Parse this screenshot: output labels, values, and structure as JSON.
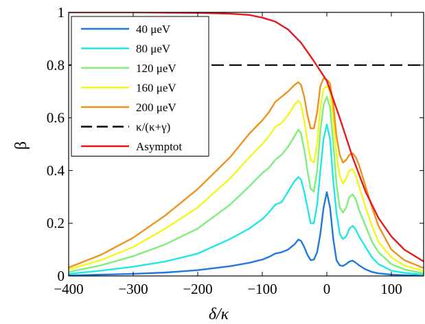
{
  "chart_data": {
    "type": "line",
    "title": "",
    "xlabel": "δ/κ",
    "ylabel": "β",
    "xlim": [
      -400,
      150
    ],
    "ylim": [
      0,
      1
    ],
    "xticks": [
      -400,
      -300,
      -200,
      -100,
      0,
      100
    ],
    "xtick_labels": [
      "−400",
      "−300",
      "−200",
      "−100",
      "0",
      "100"
    ],
    "yticks": [
      0,
      0.2,
      0.4,
      0.6,
      0.8,
      1
    ],
    "ytick_labels": [
      "0",
      "0.2",
      "0.4",
      "0.6",
      "0.8",
      "1"
    ],
    "grid": false,
    "legend_position": "top-left",
    "series": [
      {
        "name": "40 μeV",
        "color": "#1f78e0",
        "style": "solid",
        "x": [
          -400,
          -350,
          -300,
          -250,
          -200,
          -150,
          -120,
          -100,
          -90,
          -80,
          -70,
          -60,
          -50,
          -44,
          -40,
          -35,
          -30,
          -25,
          -20,
          -15,
          -10,
          -5,
          0,
          5,
          10,
          15,
          20,
          25,
          30,
          35,
          40,
          45,
          50,
          60,
          70,
          80,
          100,
          120,
          150
        ],
        "y": [
          0.002,
          0.005,
          0.008,
          0.013,
          0.022,
          0.037,
          0.05,
          0.062,
          0.072,
          0.085,
          0.09,
          0.1,
          0.12,
          0.138,
          0.133,
          0.11,
          0.08,
          0.06,
          0.062,
          0.09,
          0.16,
          0.26,
          0.318,
          0.26,
          0.14,
          0.06,
          0.04,
          0.038,
          0.045,
          0.055,
          0.058,
          0.05,
          0.04,
          0.025,
          0.015,
          0.01,
          0.005,
          0.003,
          0.001
        ]
      },
      {
        "name": "80 μeV",
        "color": "#22e6e6",
        "style": "solid",
        "x": [
          -400,
          -350,
          -300,
          -250,
          -200,
          -150,
          -120,
          -100,
          -90,
          -80,
          -70,
          -60,
          -50,
          -44,
          -40,
          -35,
          -30,
          -25,
          -20,
          -15,
          -10,
          -5,
          0,
          5,
          10,
          15,
          20,
          25,
          30,
          35,
          40,
          45,
          50,
          60,
          70,
          80,
          100,
          120,
          150
        ],
        "y": [
          0.008,
          0.02,
          0.035,
          0.055,
          0.085,
          0.14,
          0.18,
          0.215,
          0.24,
          0.27,
          0.28,
          0.32,
          0.36,
          0.375,
          0.365,
          0.32,
          0.26,
          0.2,
          0.2,
          0.27,
          0.4,
          0.52,
          0.575,
          0.52,
          0.36,
          0.24,
          0.16,
          0.14,
          0.15,
          0.18,
          0.19,
          0.175,
          0.15,
          0.11,
          0.07,
          0.045,
          0.02,
          0.012,
          0.005
        ]
      },
      {
        "name": "120 μeV",
        "color": "#7cef7c",
        "style": "solid",
        "x": [
          -400,
          -350,
          -300,
          -250,
          -200,
          -150,
          -120,
          -100,
          -90,
          -80,
          -70,
          -60,
          -50,
          -44,
          -40,
          -35,
          -30,
          -25,
          -20,
          -15,
          -10,
          -5,
          0,
          5,
          10,
          15,
          20,
          25,
          30,
          35,
          40,
          45,
          50,
          60,
          70,
          80,
          100,
          120,
          150
        ],
        "y": [
          0.015,
          0.04,
          0.075,
          0.12,
          0.18,
          0.27,
          0.34,
          0.39,
          0.41,
          0.44,
          0.46,
          0.49,
          0.53,
          0.555,
          0.54,
          0.48,
          0.4,
          0.33,
          0.32,
          0.4,
          0.55,
          0.65,
          0.68,
          0.64,
          0.5,
          0.35,
          0.26,
          0.24,
          0.26,
          0.3,
          0.31,
          0.29,
          0.25,
          0.19,
          0.13,
          0.09,
          0.045,
          0.025,
          0.01
        ]
      },
      {
        "name": "160 μeV",
        "color": "#f5f51e",
        "style": "solid",
        "x": [
          -400,
          -350,
          -300,
          -250,
          -200,
          -150,
          -120,
          -100,
          -90,
          -80,
          -70,
          -60,
          -50,
          -44,
          -40,
          -35,
          -30,
          -25,
          -20,
          -15,
          -10,
          -5,
          0,
          5,
          10,
          15,
          20,
          25,
          30,
          35,
          40,
          45,
          50,
          60,
          70,
          80,
          100,
          120,
          150
        ],
        "y": [
          0.025,
          0.06,
          0.11,
          0.18,
          0.26,
          0.37,
          0.45,
          0.5,
          0.53,
          0.565,
          0.58,
          0.61,
          0.65,
          0.665,
          0.65,
          0.59,
          0.51,
          0.44,
          0.43,
          0.5,
          0.64,
          0.71,
          0.72,
          0.7,
          0.59,
          0.46,
          0.38,
          0.35,
          0.37,
          0.4,
          0.405,
          0.38,
          0.34,
          0.26,
          0.19,
          0.13,
          0.07,
          0.04,
          0.018
        ]
      },
      {
        "name": "200 μeV",
        "color": "#f0901e",
        "style": "solid",
        "x": [
          -400,
          -350,
          -300,
          -250,
          -200,
          -150,
          -120,
          -100,
          -90,
          -80,
          -70,
          -60,
          -50,
          -44,
          -40,
          -35,
          -30,
          -25,
          -20,
          -15,
          -10,
          -5,
          0,
          5,
          10,
          15,
          20,
          25,
          30,
          35,
          40,
          45,
          50,
          60,
          70,
          80,
          100,
          120,
          150
        ],
        "y": [
          0.032,
          0.08,
          0.145,
          0.23,
          0.33,
          0.45,
          0.54,
          0.59,
          0.62,
          0.66,
          0.68,
          0.7,
          0.725,
          0.735,
          0.725,
          0.68,
          0.61,
          0.56,
          0.56,
          0.62,
          0.72,
          0.75,
          0.745,
          0.73,
          0.65,
          0.53,
          0.46,
          0.43,
          0.44,
          0.46,
          0.465,
          0.45,
          0.42,
          0.34,
          0.26,
          0.19,
          0.1,
          0.06,
          0.03
        ]
      },
      {
        "name": "κ/(κ+γ)",
        "color": "#000000",
        "style": "dashed",
        "x": [
          -400,
          150
        ],
        "y": [
          0.8,
          0.8
        ]
      },
      {
        "name": "Asymptot",
        "color": "#e31a1c",
        "style": "solid",
        "x": [
          -400,
          -300,
          -200,
          -150,
          -120,
          -100,
          -80,
          -60,
          -40,
          -20,
          0,
          20,
          40,
          60,
          80,
          100,
          120,
          150
        ],
        "y": [
          1.0,
          1.0,
          0.998,
          0.995,
          0.99,
          0.98,
          0.965,
          0.935,
          0.885,
          0.815,
          0.74,
          0.6,
          0.45,
          0.32,
          0.22,
          0.15,
          0.1,
          0.055
        ]
      }
    ]
  }
}
